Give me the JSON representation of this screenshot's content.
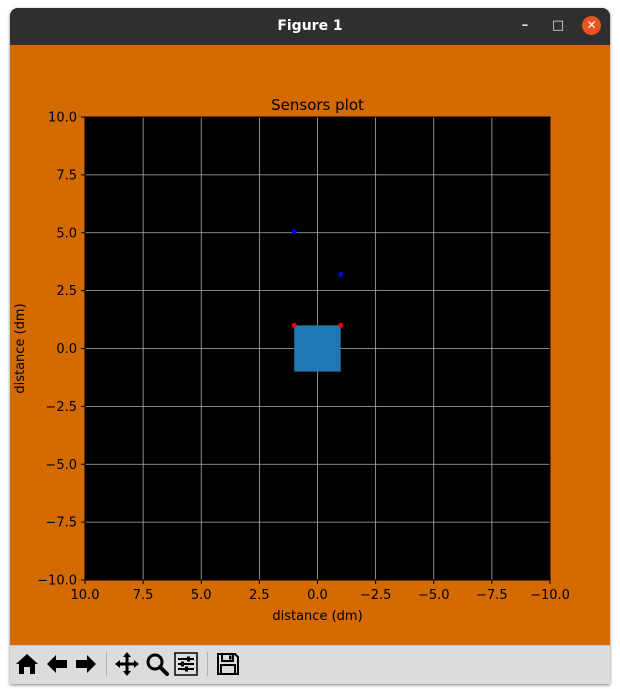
{
  "window": {
    "title": "Figure 1"
  },
  "window_controls": {
    "minimize": "–",
    "maximize": "□",
    "close": "✕"
  },
  "colors": {
    "frame_background": "#d36a02",
    "axes_background": "#000000",
    "grid": "#b0b0b0",
    "robot_body": "#1f77b4",
    "red_points": "#ff0000",
    "blue_points": "#0000ff"
  },
  "toolbar": {
    "buttons": [
      {
        "name": "home",
        "icon": "home-icon"
      },
      {
        "name": "back",
        "icon": "arrow-left-icon"
      },
      {
        "name": "forward",
        "icon": "arrow-right-icon"
      },
      {
        "name": "pan",
        "icon": "move-icon"
      },
      {
        "name": "zoom",
        "icon": "magnifier-icon"
      },
      {
        "name": "configure",
        "icon": "sliders-icon"
      },
      {
        "name": "save",
        "icon": "floppy-disk-icon"
      }
    ]
  },
  "chart_data": {
    "type": "scatter",
    "title": "Sensors plot",
    "xlabel": "distance (dm)",
    "ylabel": "distance (dm)",
    "xlim": [
      10,
      -10
    ],
    "ylim": [
      -10,
      10
    ],
    "x_inverted": true,
    "grid": true,
    "xticks": [
      10,
      7.5,
      5,
      2.5,
      0,
      -2.5,
      -5,
      -7.5,
      -10
    ],
    "xtick_labels": [
      "10.0",
      "7.5",
      "5.0",
      "2.5",
      "0.0",
      "−2.5",
      "−5.0",
      "−7.5",
      "−10.0"
    ],
    "yticks": [
      10,
      7.5,
      5,
      2.5,
      0,
      -2.5,
      -5,
      -7.5,
      -10
    ],
    "ytick_labels": [
      "10.0",
      "7.5",
      "5.0",
      "2.5",
      "0.0",
      "−2.5",
      "−5.0",
      "−7.5",
      "−10.0"
    ],
    "rectangle": {
      "x": [
        -1,
        1
      ],
      "y": [
        -1,
        1
      ]
    },
    "series": [
      {
        "points": [
          [
            1,
            1
          ],
          [
            -1,
            1
          ]
        ]
      },
      {
        "points": [
          [
            1,
            5.05
          ],
          [
            -1,
            3.2
          ]
        ]
      }
    ]
  }
}
